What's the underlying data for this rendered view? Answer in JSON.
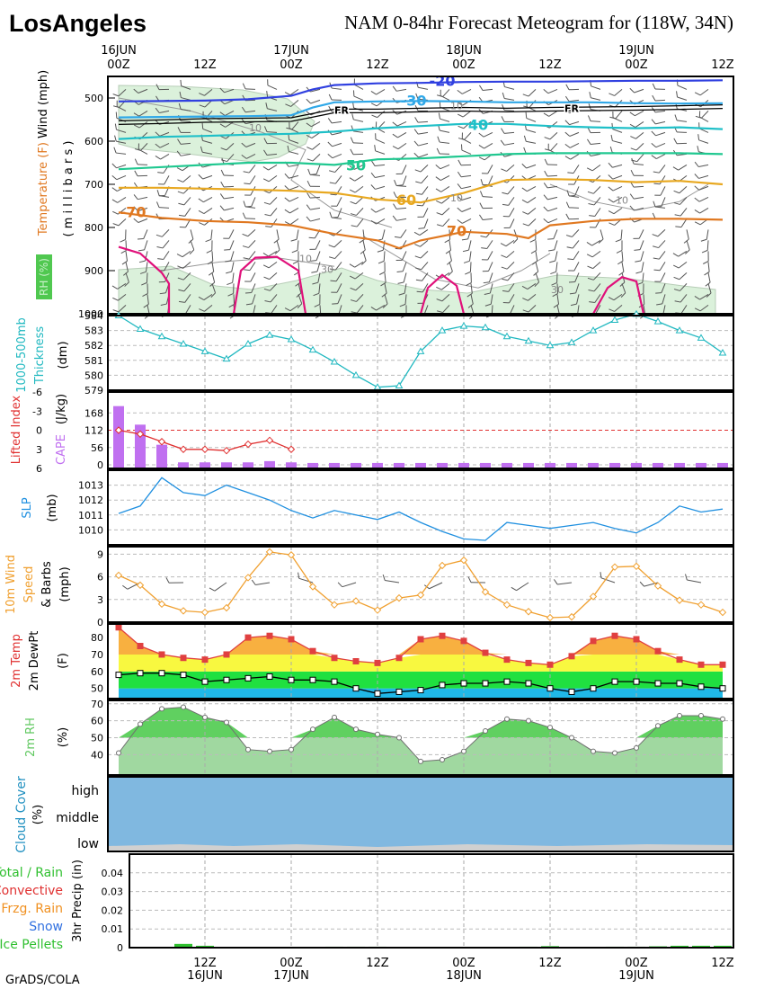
{
  "header": {
    "location": "LosAngeles",
    "title": "NAM 0-84hr Forecast Meteogram for (118W, 34N)",
    "credit": "GrADS/COLA"
  },
  "time_axis": {
    "top_labels": [
      {
        "hour": 0,
        "line1": "16JUN",
        "line2": "00Z"
      },
      {
        "hour": 12,
        "line1": "",
        "line2": "12Z"
      },
      {
        "hour": 24,
        "line1": "17JUN",
        "line2": "00Z"
      },
      {
        "hour": 36,
        "line1": "",
        "line2": "12Z"
      },
      {
        "hour": 48,
        "line1": "18JUN",
        "line2": "00Z"
      },
      {
        "hour": 60,
        "line1": "",
        "line2": "12Z"
      },
      {
        "hour": 72,
        "line1": "19JUN",
        "line2": "00Z"
      },
      {
        "hour": 84,
        "line1": "",
        "line2": "12Z"
      }
    ],
    "bottom_labels": [
      {
        "hour": 12,
        "line1": "12Z",
        "line2": "16JUN"
      },
      {
        "hour": 24,
        "line1": "00Z",
        "line2": "17JUN"
      },
      {
        "hour": 36,
        "line1": "12Z",
        "line2": ""
      },
      {
        "hour": 48,
        "line1": "00Z",
        "line2": "18JUN"
      },
      {
        "hour": 60,
        "line1": "12Z",
        "line2": ""
      },
      {
        "hour": 72,
        "line1": "00Z",
        "line2": "19JUN"
      },
      {
        "hour": 84,
        "line1": "12Z",
        "line2": ""
      }
    ]
  },
  "chart_data": [
    {
      "id": "upper",
      "type": "line",
      "ylabel_temp": "Temperature (F)",
      "ylabel_wind": "Wind (mph)",
      "ylabel_rh": "RH (%)",
      "ylabel_axis": "( m i l l i b a r s )",
      "ylim": [
        1000,
        450
      ],
      "yticks": [
        500,
        600,
        700,
        800,
        900,
        1000
      ],
      "isotherms": [
        {
          "label": "-20",
          "color": "#3040e0",
          "x": [
            0,
            6,
            12,
            18,
            24,
            27,
            30,
            36,
            42,
            48,
            54,
            60,
            66,
            72,
            78,
            84
          ],
          "p": [
            508,
            507,
            506,
            503,
            495,
            480,
            470,
            466,
            465,
            463,
            462,
            462,
            461,
            460,
            460,
            459
          ],
          "label_at": [
            45,
            472
          ],
          "label_size": 16
        },
        {
          "label": "-30",
          "color": "#30a8e8",
          "x": [
            0,
            6,
            12,
            18,
            24,
            27,
            30,
            36,
            42,
            48,
            54,
            60,
            66,
            72,
            78,
            84
          ],
          "p": [
            545,
            544,
            543,
            542,
            540,
            522,
            510,
            508,
            507,
            508,
            510,
            510,
            510,
            512,
            513,
            512
          ],
          "label_at": [
            41,
            518
          ],
          "label_size": 16
        },
        {
          "label": "40",
          "color": "#20c0c8",
          "x": [
            0,
            6,
            12,
            18,
            24,
            30,
            36,
            42,
            48,
            54,
            60,
            66,
            72,
            78,
            84
          ],
          "p": [
            595,
            590,
            588,
            585,
            583,
            578,
            570,
            565,
            560,
            560,
            565,
            568,
            570,
            568,
            572
          ],
          "label_at": [
            50,
            574
          ],
          "label_size": 16
        },
        {
          "label": "50",
          "color": "#20c890",
          "x": [
            0,
            6,
            12,
            18,
            24,
            30,
            36,
            42,
            48,
            54,
            60,
            66,
            72,
            78,
            84
          ],
          "p": [
            665,
            660,
            655,
            650,
            650,
            655,
            642,
            640,
            635,
            630,
            628,
            628,
            628,
            628,
            630
          ],
          "label_at": [
            33,
            668
          ],
          "label_size": 16
        },
        {
          "label": "60",
          "color": "#e8a820",
          "x": [
            0,
            6,
            12,
            18,
            24,
            30,
            36,
            42,
            48,
            54,
            60,
            66,
            72,
            78,
            84
          ],
          "p": [
            708,
            708,
            710,
            712,
            715,
            720,
            735,
            742,
            720,
            690,
            688,
            690,
            695,
            692,
            700
          ],
          "label_at": [
            40,
            748
          ],
          "label_size": 16
        },
        {
          "label": "-70",
          "color": "#e07820",
          "x": [
            0,
            6,
            12,
            18,
            24,
            30,
            36,
            39,
            42,
            48,
            54,
            57,
            60,
            66,
            72,
            78,
            84
          ],
          "p": [
            765,
            778,
            785,
            788,
            795,
            815,
            830,
            848,
            830,
            810,
            815,
            825,
            795,
            785,
            780,
            780,
            782
          ],
          "label_at": [
            2,
            776
          ],
          "label_size": 16
        },
        {
          "label": "70",
          "color": "#e07820",
          "x": [],
          "p": [],
          "label_at": [
            47,
            820
          ],
          "label_size": 16
        },
        {
          "label": "80",
          "color": "#e0107a",
          "x": [
            0,
            3,
            6,
            7,
            7
          ],
          "p": [
            845,
            860,
            905,
            930,
            1000
          ],
          "label_at": null,
          "label_size": 0
        },
        {
          "label": "80b",
          "color": "#e0107a",
          "x": [
            16,
            17,
            19,
            22,
            25,
            26
          ],
          "p": [
            1000,
            900,
            870,
            868,
            900,
            1000
          ],
          "label_at": null,
          "label_size": 0
        },
        {
          "label": "80c",
          "color": "#e0107a",
          "x": [
            42,
            43,
            45,
            47,
            48
          ],
          "p": [
            1000,
            940,
            910,
            935,
            1000
          ],
          "label_at": null,
          "label_size": 0
        },
        {
          "label": "80d",
          "color": "#e0107a",
          "x": [
            66,
            68,
            70,
            72,
            73
          ],
          "p": [
            1000,
            940,
            915,
            925,
            1000
          ],
          "label_at": null,
          "label_size": 0
        }
      ],
      "freezing": {
        "label": "FR",
        "x": [
          0,
          6,
          12,
          18,
          24,
          27,
          30,
          36,
          42,
          48,
          54,
          60,
          66,
          72,
          78,
          84
        ],
        "p": [
          557,
          555,
          552,
          551,
          550,
          540,
          530,
          530,
          528,
          526,
          528,
          526,
          525,
          524,
          522,
          520
        ],
        "label_points": [
          [
            31,
            528
          ],
          [
            63,
            524
          ]
        ]
      },
      "rh_labels": [
        {
          "text": "10",
          "x": 26,
          "p": 880
        },
        {
          "text": "30",
          "x": 29,
          "p": 905
        },
        {
          "text": "10",
          "x": 47,
          "p": 740
        },
        {
          "text": "10",
          "x": 70,
          "p": 745
        },
        {
          "text": "30",
          "x": 61,
          "p": 952
        },
        {
          "text": "10",
          "x": 47,
          "p": 526
        },
        {
          "text": "10",
          "x": 19,
          "p": 577
        }
      ]
    },
    {
      "id": "thickness",
      "type": "line",
      "ylabel": "1000-500mb Thickness",
      "unit": "(dm)",
      "yticks": [
        579,
        580,
        581,
        582,
        583,
        584
      ],
      "ylim": [
        579,
        584
      ],
      "x": [
        0,
        3,
        6,
        9,
        12,
        15,
        18,
        21,
        24,
        27,
        30,
        33,
        36,
        39,
        42,
        45,
        48,
        51,
        54,
        57,
        60,
        63,
        66,
        69,
        72,
        75,
        78,
        81,
        84
      ],
      "values": [
        584.0,
        583.1,
        582.6,
        582.1,
        581.6,
        581.1,
        582.1,
        582.7,
        582.4,
        581.7,
        580.9,
        580.0,
        579.2,
        579.3,
        581.6,
        583.0,
        583.3,
        583.2,
        582.6,
        582.3,
        582.0,
        582.2,
        583.0,
        583.7,
        584.1,
        583.6,
        583.0,
        582.5,
        581.5
      ],
      "color": "#20b8c0"
    },
    {
      "id": "stability",
      "type": "bar",
      "ylabel_li": "Lifted Index",
      "ylabel_cape": "CAPE",
      "unit": "(J/kg)",
      "li_ticks": [
        -6,
        -3,
        0,
        3,
        6
      ],
      "cape_ticks": [
        0,
        56,
        112,
        168
      ],
      "cape_ylim": [
        0,
        224
      ],
      "li_ylim": [
        -6,
        6
      ],
      "x": [
        0,
        3,
        6,
        9,
        12,
        15,
        18,
        21,
        24,
        27,
        30,
        33,
        36,
        39,
        42,
        45,
        48,
        51,
        54,
        57,
        60,
        63,
        66,
        69,
        72,
        75,
        78,
        81,
        84
      ],
      "cape": [
        190,
        130,
        65,
        8,
        8,
        8,
        8,
        12,
        8,
        6,
        6,
        6,
        6,
        6,
        6,
        6,
        6,
        6,
        6,
        6,
        6,
        6,
        6,
        6,
        6,
        6,
        6,
        6,
        6
      ],
      "li_x": [
        0,
        3,
        6,
        9,
        12,
        15,
        18,
        21,
        24
      ],
      "li": [
        0,
        0.6,
        1.8,
        3.0,
        3.0,
        3.2,
        2.2,
        1.6,
        3.0
      ],
      "li_color": "#e03030",
      "cape_color": "#c070f0"
    },
    {
      "id": "slp",
      "type": "line",
      "ylabel": "SLP",
      "unit": "(mb)",
      "yticks": [
        1010,
        1011,
        1012,
        1013
      ],
      "ylim": [
        1009,
        1014
      ],
      "x": [
        0,
        3,
        6,
        9,
        12,
        15,
        18,
        21,
        24,
        27,
        30,
        33,
        36,
        39,
        42,
        45,
        48,
        51,
        54,
        57,
        60,
        63,
        66,
        69,
        72,
        75,
        78,
        81,
        84
      ],
      "values": [
        1011.1,
        1011.6,
        1013.5,
        1012.5,
        1012.3,
        1013.0,
        1012.5,
        1012.0,
        1011.3,
        1010.8,
        1011.3,
        1011.0,
        1010.7,
        1011.2,
        1010.5,
        1009.9,
        1009.4,
        1009.3,
        1010.5,
        1010.3,
        1010.1,
        1010.3,
        1010.5,
        1010.1,
        1009.8,
        1010.5,
        1011.6,
        1011.2,
        1011.4
      ],
      "color": "#2090e0"
    },
    {
      "id": "wind10m",
      "type": "line",
      "ylabel": "10m Wind Speed & Barbs",
      "unit": "(mph)",
      "yticks": [
        0,
        3,
        6,
        9
      ],
      "ylim": [
        0,
        10
      ],
      "x": [
        0,
        3,
        6,
        9,
        12,
        15,
        18,
        21,
        24,
        27,
        30,
        33,
        36,
        39,
        42,
        45,
        48,
        51,
        54,
        57,
        60,
        63,
        66,
        69,
        72,
        75,
        78,
        81,
        84
      ],
      "values": [
        6.2,
        4.9,
        2.4,
        1.5,
        1.3,
        1.9,
        5.9,
        9.3,
        8.9,
        4.7,
        2.3,
        2.8,
        1.6,
        3.2,
        3.6,
        7.5,
        8.2,
        4.0,
        2.3,
        1.4,
        0.6,
        0.7,
        3.4,
        7.3,
        7.4,
        4.8,
        2.9,
        2.3,
        1.3
      ],
      "color": "#f0a030"
    },
    {
      "id": "temp2m",
      "type": "area",
      "ylabel_temp": "2m Temp",
      "ylabel_dew": "2m DewPt",
      "unit": "(F)",
      "yticks": [
        50,
        60,
        70,
        80
      ],
      "ylim": [
        44,
        88
      ],
      "x": [
        0,
        3,
        6,
        9,
        12,
        15,
        18,
        21,
        24,
        27,
        30,
        33,
        36,
        39,
        42,
        45,
        48,
        51,
        54,
        57,
        60,
        63,
        66,
        69,
        72,
        75,
        78,
        81,
        84
      ],
      "temp": [
        86,
        75,
        70,
        68,
        67,
        70,
        80,
        81,
        79,
        72,
        68,
        66,
        65,
        68,
        79,
        81,
        78,
        71,
        67,
        65,
        64,
        69,
        78,
        81,
        79,
        72,
        67,
        64,
        64
      ],
      "dewpt": [
        58,
        59,
        59,
        58,
        54,
        55,
        56,
        57,
        55,
        55,
        54,
        50,
        47,
        48,
        49,
        52,
        53,
        53,
        54,
        53,
        50,
        48,
        50,
        54,
        54,
        53,
        53,
        51,
        50
      ],
      "temp_color": "#e04040",
      "band_colors": [
        "#20b8e8",
        "#20e040",
        "#f8f840",
        "#f8b040"
      ]
    },
    {
      "id": "rh2m",
      "type": "area",
      "ylabel": "2m RH",
      "unit": "(%)",
      "yticks": [
        40,
        50,
        60,
        70
      ],
      "ylim": [
        28,
        72
      ],
      "x": [
        0,
        3,
        6,
        9,
        12,
        15,
        18,
        21,
        24,
        27,
        30,
        33,
        36,
        39,
        42,
        45,
        48,
        51,
        54,
        57,
        60,
        63,
        66,
        69,
        72,
        75,
        78,
        81,
        84
      ],
      "values": [
        41,
        58,
        67,
        68,
        62,
        59,
        43,
        42,
        43,
        55,
        62,
        55,
        52,
        50,
        36,
        37,
        42,
        54,
        61,
        60,
        56,
        50,
        42,
        41,
        44,
        57,
        63,
        63,
        61
      ],
      "color": "#50c850"
    },
    {
      "id": "cloud",
      "type": "area",
      "ylabel": "Cloud Cover",
      "unit": "(%)",
      "levels": [
        "high",
        "middle",
        "low"
      ],
      "color": "#80b8e0"
    },
    {
      "id": "precip",
      "type": "bar",
      "ylabel": "3hr Precip",
      "unit": "(in)",
      "yticks": [
        0,
        0.01,
        0.02,
        0.03,
        0.04
      ],
      "ylim": [
        0,
        0.05
      ],
      "legend": [
        {
          "text": "Total / Rain",
          "color": "#30c030"
        },
        {
          "text": "Convective",
          "color": "#e03030"
        },
        {
          "text": "Frzg. Rain",
          "color": "#f09020"
        },
        {
          "text": "Snow",
          "color": "#3070e0"
        },
        {
          "text": "Ice Pellets",
          "color": "#30c030"
        }
      ],
      "x": [
        9,
        12,
        30,
        33,
        36,
        57,
        60,
        69,
        72,
        75,
        78,
        81,
        84
      ],
      "values": [
        0.002,
        0.001,
        0.0005,
        0.0005,
        0.0005,
        0.0005,
        0.0008,
        0.0005,
        0.0005,
        0.0007,
        0.001,
        0.001,
        0.001
      ],
      "color": "#30c030"
    }
  ]
}
